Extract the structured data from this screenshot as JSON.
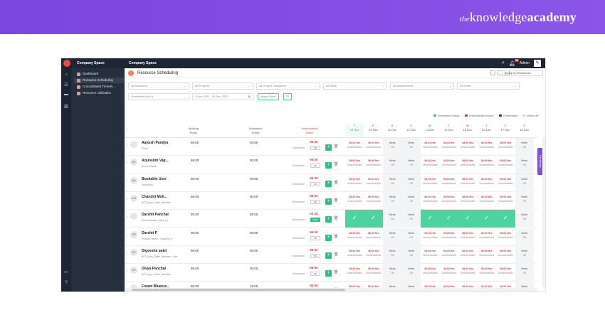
{
  "banner": {
    "brand_the": "the",
    "brand_knowledge": "knowledge",
    "brand_academy": "academy"
  },
  "app": {
    "topbar": {
      "company_left": "Company Space",
      "company_right": "Company Space",
      "notif_count": "99",
      "user": "Admin"
    },
    "nav": [
      {
        "label": "Dashboard",
        "active": false
      },
      {
        "label": "Resource Scheduling",
        "active": true
      },
      {
        "label": "Consolidated Timesh...",
        "active": false
      },
      {
        "label": "Resource Utilization",
        "active": false
      }
    ],
    "page": {
      "title": "Resource Scheduling",
      "groupby": "Group by Resources"
    },
    "filters": {
      "resource": "All Resource",
      "projects": "All Projects",
      "categories": "All Project Categories",
      "skills": "All Skills",
      "departments": "All Departments",
      "roles": "All Roles",
      "scheduled": "Scheduled Any %",
      "daterange": "9 Dec 2021 - 24 Dec 2021",
      "apply": "Apply Filters"
    },
    "legend": {
      "scheduled": "Scheduled Hours",
      "unscheduled": "Unscheduled Hours",
      "overloaded": "Overloaded",
      "weekoff": "Week off"
    },
    "columns": {
      "working": [
        "Working",
        "Hours"
      ],
      "scheduled": [
        "Scheduled",
        "Hours"
      ],
      "unscheduled": [
        "Unscheduled",
        "Hours"
      ]
    },
    "days": [
      {
        "d": "T",
        "date": "09 Dec"
      },
      {
        "d": "F",
        "date": "10 Dec"
      },
      {
        "d": "S",
        "date": "11 Dec"
      },
      {
        "d": "S",
        "date": "12 Dec"
      },
      {
        "d": "M",
        "date": "13 Dec"
      },
      {
        "d": "T",
        "date": "14 Dec"
      },
      {
        "d": "W",
        "date": "15 Dec"
      },
      {
        "d": "T",
        "date": "16 Dec"
      },
      {
        "d": "F",
        "date": "17 Dec"
      },
      {
        "d": "S",
        "date": "18 Dec"
      }
    ],
    "cell_text": {
      "hrs": "08:00 Hrs",
      "sub": "Unscheduled",
      "week": "Week",
      "off": "Off",
      "scheduled": "Scheduled"
    },
    "rows": [
      {
        "initials": "",
        "name": "Aayush Pandya",
        "role": "Client",
        "working": "96:00",
        "scheduled": "00:00",
        "unscheduled": "96:00",
        "pill": "0%",
        "full": false
      },
      {
        "initials": "AV",
        "name": "Arjunsinh Vag...",
        "role": "Scrum Master",
        "working": "96:00",
        "scheduled": "00:00",
        "unscheduled": "96:00",
        "pill": "0%",
        "full": false
      },
      {
        "initials": "BU",
        "name": "Bookable User",
        "role": "Developer",
        "working": "96:00",
        "scheduled": "00:00",
        "unscheduled": "96:00",
        "pill": "0%",
        "full": false
      },
      {
        "initials": "CM",
        "name": "Chandni Moti...",
        "role": "BCS_java_Team_Member",
        "working": "96:00",
        "scheduled": "00:00",
        "unscheduled": "96:00",
        "pill": "0%",
        "full": false
      },
      {
        "initials": "",
        "name": "Darshit Panchal",
        "role": "Scrum Master | Web (+)",
        "working": "96:00",
        "scheduled": "96:00",
        "unscheduled": "00:00",
        "pill": "100%",
        "full": true
      },
      {
        "initials": "DP",
        "name": "Darshit P",
        "role": "Product Owner | Node.js (+)",
        "working": "96:00",
        "scheduled": "00:00",
        "unscheduled": "96:00",
        "pill": "0%",
        "full": false
      },
      {
        "initials": "DP",
        "name": "Digvesha patel",
        "role": "BCS_java_Team_Member | .Net",
        "working": "96:00",
        "scheduled": "00:00",
        "unscheduled": "96:00",
        "pill": "0%",
        "full": false
      },
      {
        "initials": "DP",
        "name": "Divya Panchal",
        "role": "BCS_java_Team_Member",
        "working": "96:00",
        "scheduled": "00:00",
        "unscheduled": "96:00",
        "pill": "0%",
        "full": false
      },
      {
        "initials": "",
        "name": "Foram Bhanus...",
        "role": "",
        "working": "96:00",
        "scheduled": "16:00",
        "unscheduled": "80:00",
        "pill": "17%",
        "full": false
      }
    ],
    "feedback": "Feedback"
  }
}
